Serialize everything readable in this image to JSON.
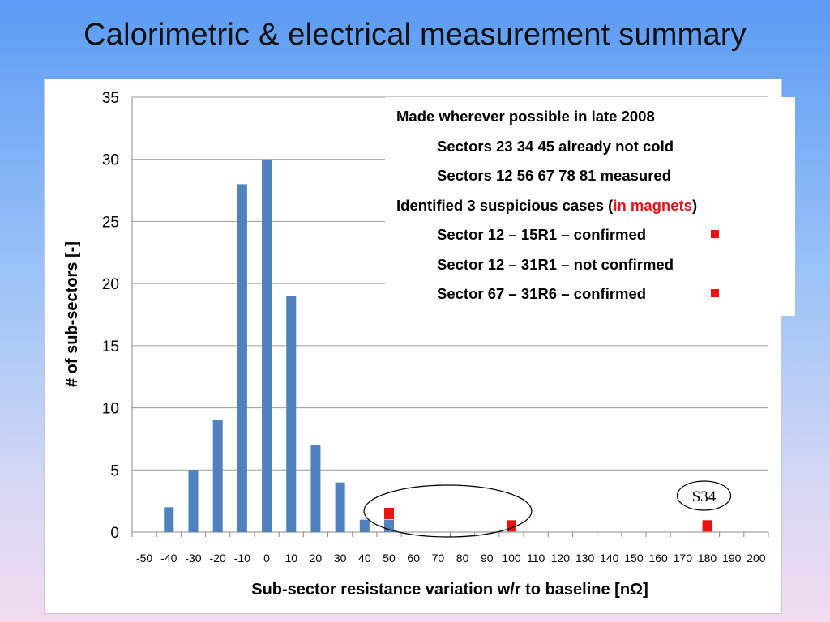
{
  "slide": {
    "title": "Calorimetric & electrical measurement summary"
  },
  "notes": {
    "lines": [
      {
        "text": "Made wherever possible in late 2008",
        "indent": false
      },
      {
        "text": "Sectors 23 34 45 already not cold",
        "indent": true
      },
      {
        "text": "Sectors 12 56 67 78 81 measured",
        "indent": true
      },
      {
        "pre": "Identified 3 suspicious cases (",
        "accent": "in magnets",
        "post": ")",
        "indent": false
      },
      {
        "text": "Sector 12 – 15R1 – confirmed",
        "indent": true,
        "marker": true
      },
      {
        "text": "Sector 12 – 31R1 – not confirmed",
        "indent": true
      },
      {
        "text": "Sector 67 – 31R6 – confirmed",
        "indent": true,
        "marker": true
      }
    ]
  },
  "chart_data": {
    "type": "bar",
    "xlabel": "Sub-sector resistance variation w/r to baseline [nΩ]",
    "ylabel": "# of sub-sectors [-]",
    "ylim": [
      0,
      35
    ],
    "yticks": [
      0,
      5,
      10,
      15,
      20,
      25,
      30,
      35
    ],
    "categories": [
      "-50",
      "-40",
      "-30",
      "-20",
      "-10",
      "0",
      "10",
      "20",
      "30",
      "40",
      "50",
      "60",
      "70",
      "80",
      "90",
      "100",
      "110",
      "120",
      "130",
      "140",
      "150",
      "160",
      "170",
      "180",
      "190",
      "200"
    ],
    "values": [
      0,
      2,
      5,
      9,
      28,
      30,
      19,
      7,
      4,
      1,
      1,
      0,
      0,
      0,
      0,
      0,
      0,
      0,
      0,
      0,
      0,
      0,
      0,
      0,
      0,
      0
    ],
    "grid": true,
    "bar_color": "#4f81bd",
    "highlight_color": "#ee1111",
    "highlights": [
      {
        "category": "50",
        "value": 1.5
      },
      {
        "category": "100",
        "value": 0.5
      },
      {
        "category": "180",
        "value": 0.5
      }
    ],
    "annotations": [
      {
        "text": "S34",
        "category": "180"
      }
    ],
    "circled_range": [
      "50",
      "100"
    ]
  }
}
